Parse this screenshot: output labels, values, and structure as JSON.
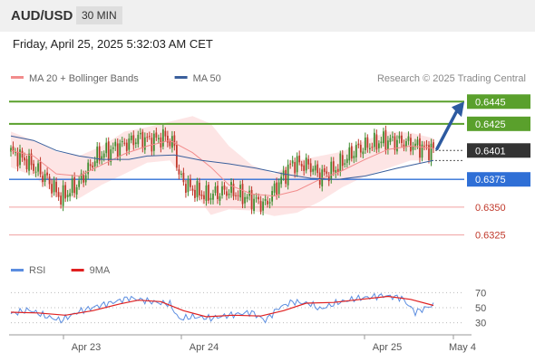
{
  "header": {
    "symbol": "AUD/USD",
    "timeframe": "30 MIN",
    "datetime": "Friday, April 25, 2025 5:32:03 AM CET"
  },
  "legend": {
    "price": [
      {
        "label": "MA 20 + Bollinger Bands",
        "color": "#f28c8c"
      },
      {
        "label": "MA 50",
        "color": "#3a5f9c"
      }
    ],
    "rsi": [
      {
        "label": "RSI",
        "color": "#5b8de0"
      },
      {
        "label": "9MA",
        "color": "#e02020"
      }
    ]
  },
  "credit": "Research © 2025 Trading Central",
  "colors": {
    "bull": "#3e8c2e",
    "bear": "#c0392b",
    "green_level": "#5aa02c",
    "blue_level": "#2f6fd6",
    "red_level": "#f0a0a0",
    "arrow": "#2d5aa0",
    "band_fill": "#fde0e0"
  },
  "chart_data": [
    {
      "type": "candlestick",
      "instrument": "AUD/USD",
      "timeframe": "30 MIN",
      "x_ticks": [
        "Apr 23",
        "Apr 24",
        "Apr 25",
        "May 4"
      ],
      "y_range": [
        0.631,
        0.6455
      ],
      "levels": [
        {
          "value": 0.6445,
          "label": "0.6445",
          "kind": "resistance"
        },
        {
          "value": 0.6425,
          "label": "0.6425",
          "kind": "resistance"
        },
        {
          "value": 0.6401,
          "label": "0.6401",
          "kind": "last"
        },
        {
          "value": 0.6375,
          "label": "0.6375",
          "kind": "pivot"
        },
        {
          "value": 0.635,
          "label": "0.6350",
          "kind": "support"
        },
        {
          "value": 0.6325,
          "label": "0.6325",
          "kind": "support"
        }
      ],
      "anchors": [
        {
          "t": 0,
          "p": 0.64
        },
        {
          "t": 8,
          "p": 0.639
        },
        {
          "t": 16,
          "p": 0.6375
        },
        {
          "t": 22,
          "p": 0.6358
        },
        {
          "t": 30,
          "p": 0.6372
        },
        {
          "t": 38,
          "p": 0.6396
        },
        {
          "t": 48,
          "p": 0.6405
        },
        {
          "t": 56,
          "p": 0.6412
        },
        {
          "t": 62,
          "p": 0.641
        },
        {
          "t": 68,
          "p": 0.6413
        },
        {
          "t": 72,
          "p": 0.6405
        },
        {
          "t": 74,
          "p": 0.6378
        },
        {
          "t": 78,
          "p": 0.6368
        },
        {
          "t": 86,
          "p": 0.636
        },
        {
          "t": 96,
          "p": 0.6365
        },
        {
          "t": 106,
          "p": 0.6357
        },
        {
          "t": 112,
          "p": 0.6352
        },
        {
          "t": 118,
          "p": 0.6372
        },
        {
          "t": 124,
          "p": 0.639
        },
        {
          "t": 132,
          "p": 0.6387
        },
        {
          "t": 136,
          "p": 0.6378
        },
        {
          "t": 142,
          "p": 0.6383
        },
        {
          "t": 152,
          "p": 0.6402
        },
        {
          "t": 164,
          "p": 0.641
        },
        {
          "t": 172,
          "p": 0.6409
        },
        {
          "t": 180,
          "p": 0.6404
        },
        {
          "t": 186,
          "p": 0.6401
        }
      ],
      "ma20_and_bands": [
        {
          "t": 0,
          "mid": 0.6401,
          "up": 0.6418,
          "lo": 0.6386
        },
        {
          "t": 10,
          "mid": 0.6396,
          "up": 0.641,
          "lo": 0.6378
        },
        {
          "t": 20,
          "mid": 0.638,
          "up": 0.64,
          "lo": 0.636
        },
        {
          "t": 30,
          "mid": 0.6378,
          "up": 0.6396,
          "lo": 0.6358
        },
        {
          "t": 40,
          "mid": 0.6388,
          "up": 0.6405,
          "lo": 0.637
        },
        {
          "t": 50,
          "mid": 0.6398,
          "up": 0.6418,
          "lo": 0.638
        },
        {
          "t": 60,
          "mid": 0.6405,
          "up": 0.6422,
          "lo": 0.639
        },
        {
          "t": 70,
          "mid": 0.641,
          "up": 0.6427,
          "lo": 0.6392
        },
        {
          "t": 80,
          "mid": 0.6399,
          "up": 0.6432,
          "lo": 0.6365
        },
        {
          "t": 88,
          "mid": 0.6386,
          "up": 0.6425,
          "lo": 0.6343
        },
        {
          "t": 96,
          "mid": 0.637,
          "up": 0.6405,
          "lo": 0.6348
        },
        {
          "t": 106,
          "mid": 0.6362,
          "up": 0.6388,
          "lo": 0.6347
        },
        {
          "t": 116,
          "mid": 0.636,
          "up": 0.638,
          "lo": 0.6342
        },
        {
          "t": 126,
          "mid": 0.6365,
          "up": 0.6392,
          "lo": 0.6345
        },
        {
          "t": 136,
          "mid": 0.6375,
          "up": 0.6396,
          "lo": 0.6355
        },
        {
          "t": 146,
          "mid": 0.6383,
          "up": 0.64,
          "lo": 0.6368
        },
        {
          "t": 156,
          "mid": 0.6393,
          "up": 0.641,
          "lo": 0.6378
        },
        {
          "t": 166,
          "mid": 0.6402,
          "up": 0.6418,
          "lo": 0.6385
        },
        {
          "t": 176,
          "mid": 0.6405,
          "up": 0.6417,
          "lo": 0.6392
        },
        {
          "t": 186,
          "mid": 0.6403,
          "up": 0.6412,
          "lo": 0.6392
        }
      ],
      "ma50": [
        {
          "t": 0,
          "p": 0.6414
        },
        {
          "t": 10,
          "p": 0.641
        },
        {
          "t": 20,
          "p": 0.6401
        },
        {
          "t": 30,
          "p": 0.6396
        },
        {
          "t": 40,
          "p": 0.6393
        },
        {
          "t": 52,
          "p": 0.6393
        },
        {
          "t": 60,
          "p": 0.6396
        },
        {
          "t": 72,
          "p": 0.6397
        },
        {
          "t": 84,
          "p": 0.6392
        },
        {
          "t": 96,
          "p": 0.6389
        },
        {
          "t": 108,
          "p": 0.6385
        },
        {
          "t": 120,
          "p": 0.638
        },
        {
          "t": 132,
          "p": 0.6376
        },
        {
          "t": 144,
          "p": 0.6375
        },
        {
          "t": 156,
          "p": 0.6378
        },
        {
          "t": 170,
          "p": 0.6385
        },
        {
          "t": 186,
          "p": 0.6392
        }
      ],
      "projection": {
        "from": 0.6401,
        "to": 0.6445
      }
    },
    {
      "type": "line",
      "name": "RSI",
      "y_ticks": [
        70,
        50,
        30
      ],
      "y_range": [
        20,
        80
      ],
      "rsi": [
        {
          "t": 0,
          "v": 42
        },
        {
          "t": 8,
          "v": 47
        },
        {
          "t": 16,
          "v": 38
        },
        {
          "t": 22,
          "v": 33
        },
        {
          "t": 30,
          "v": 45
        },
        {
          "t": 38,
          "v": 52
        },
        {
          "t": 46,
          "v": 58
        },
        {
          "t": 52,
          "v": 63
        },
        {
          "t": 58,
          "v": 60
        },
        {
          "t": 64,
          "v": 57
        },
        {
          "t": 70,
          "v": 55
        },
        {
          "t": 74,
          "v": 35
        },
        {
          "t": 80,
          "v": 38
        },
        {
          "t": 88,
          "v": 36
        },
        {
          "t": 96,
          "v": 40
        },
        {
          "t": 106,
          "v": 44
        },
        {
          "t": 112,
          "v": 33
        },
        {
          "t": 118,
          "v": 50
        },
        {
          "t": 124,
          "v": 58
        },
        {
          "t": 132,
          "v": 55
        },
        {
          "t": 136,
          "v": 48
        },
        {
          "t": 144,
          "v": 57
        },
        {
          "t": 152,
          "v": 62
        },
        {
          "t": 164,
          "v": 66
        },
        {
          "t": 172,
          "v": 63
        },
        {
          "t": 178,
          "v": 44
        },
        {
          "t": 186,
          "v": 54
        }
      ],
      "ma9": [
        {
          "t": 0,
          "v": 44
        },
        {
          "t": 12,
          "v": 43
        },
        {
          "t": 24,
          "v": 40
        },
        {
          "t": 36,
          "v": 46
        },
        {
          "t": 48,
          "v": 55
        },
        {
          "t": 56,
          "v": 60
        },
        {
          "t": 66,
          "v": 58
        },
        {
          "t": 76,
          "v": 46
        },
        {
          "t": 86,
          "v": 38
        },
        {
          "t": 98,
          "v": 40
        },
        {
          "t": 110,
          "v": 39
        },
        {
          "t": 120,
          "v": 46
        },
        {
          "t": 130,
          "v": 56
        },
        {
          "t": 142,
          "v": 57
        },
        {
          "t": 154,
          "v": 61
        },
        {
          "t": 166,
          "v": 65
        },
        {
          "t": 176,
          "v": 61
        },
        {
          "t": 186,
          "v": 53
        }
      ]
    }
  ]
}
